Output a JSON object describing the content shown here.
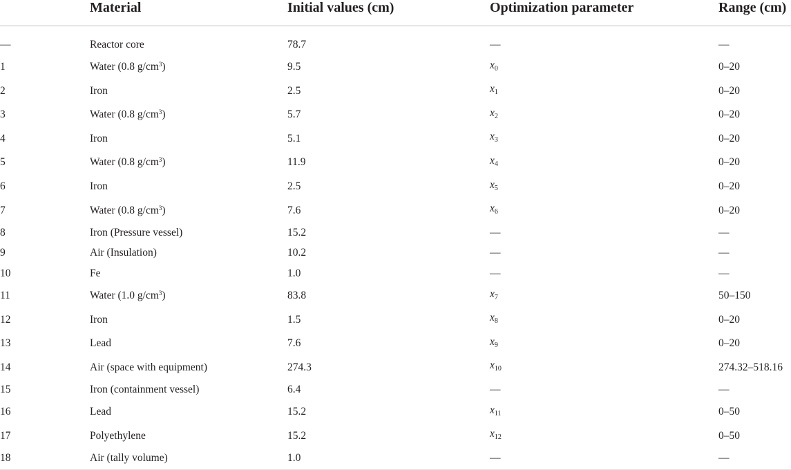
{
  "table": {
    "headers": [
      "",
      "Material",
      "Initial values (cm)",
      "Optimization parameter",
      "Range (cm)"
    ],
    "rows": [
      {
        "index": "—",
        "material": "Reactor core",
        "material_sup": "",
        "material_tail": "",
        "initial": "78.7",
        "param_base": "",
        "param_sub": "",
        "param_text": "—",
        "range": "—"
      },
      {
        "index": "1",
        "material": "Water (0.8 g/cm",
        "material_sup": "3",
        "material_tail": ")",
        "initial": "9.5",
        "param_base": "x",
        "param_sub": "0",
        "param_text": "",
        "range": "0–20"
      },
      {
        "index": "2",
        "material": "Iron",
        "material_sup": "",
        "material_tail": "",
        "initial": "2.5",
        "param_base": "x",
        "param_sub": "1",
        "param_text": "",
        "range": "0–20"
      },
      {
        "index": "3",
        "material": "Water (0.8 g/cm",
        "material_sup": "3",
        "material_tail": ")",
        "initial": "5.7",
        "param_base": "x",
        "param_sub": "2",
        "param_text": "",
        "range": "0–20"
      },
      {
        "index": "4",
        "material": "Iron",
        "material_sup": "",
        "material_tail": "",
        "initial": "5.1",
        "param_base": "x",
        "param_sub": "3",
        "param_text": "",
        "range": "0–20"
      },
      {
        "index": "5",
        "material": "Water (0.8 g/cm",
        "material_sup": "3",
        "material_tail": ")",
        "initial": "11.9",
        "param_base": "x",
        "param_sub": "4",
        "param_text": "",
        "range": "0–20"
      },
      {
        "index": "6",
        "material": "Iron",
        "material_sup": "",
        "material_tail": "",
        "initial": "2.5",
        "param_base": "x",
        "param_sub": "5",
        "param_text": "",
        "range": "0–20"
      },
      {
        "index": "7",
        "material": "Water (0.8 g/cm",
        "material_sup": "3",
        "material_tail": ")",
        "initial": "7.6",
        "param_base": "x",
        "param_sub": "6",
        "param_text": "",
        "range": "0–20"
      },
      {
        "index": "8",
        "material": "Iron (Pressure vessel)",
        "material_sup": "",
        "material_tail": "",
        "initial": "15.2",
        "param_base": "",
        "param_sub": "",
        "param_text": "—",
        "range": "—"
      },
      {
        "index": "9",
        "material": "Air (Insulation)",
        "material_sup": "",
        "material_tail": "",
        "initial": "10.2",
        "param_base": "",
        "param_sub": "",
        "param_text": "—",
        "range": "—"
      },
      {
        "index": "10",
        "material": "Fe",
        "material_sup": "",
        "material_tail": "",
        "initial": "1.0",
        "param_base": "",
        "param_sub": "",
        "param_text": "—",
        "range": "—"
      },
      {
        "index": "11",
        "material": "Water (1.0 g/cm",
        "material_sup": "3",
        "material_tail": ")",
        "initial": "83.8",
        "param_base": "x",
        "param_sub": "7",
        "param_text": "",
        "range": "50–150"
      },
      {
        "index": "12",
        "material": "Iron",
        "material_sup": "",
        "material_tail": "",
        "initial": "1.5",
        "param_base": "x",
        "param_sub": "8",
        "param_text": "",
        "range": "0–20"
      },
      {
        "index": "13",
        "material": "Lead",
        "material_sup": "",
        "material_tail": "",
        "initial": "7.6",
        "param_base": "x",
        "param_sub": "9",
        "param_text": "",
        "range": "0–20"
      },
      {
        "index": "14",
        "material": "Air (space with equipment)",
        "material_sup": "",
        "material_tail": "",
        "initial": "274.3",
        "param_base": "x",
        "param_sub": "10",
        "param_text": "",
        "range": "274.32–518.16"
      },
      {
        "index": "15",
        "material": "Iron (containment vessel)",
        "material_sup": "",
        "material_tail": "",
        "initial": "6.4",
        "param_base": "",
        "param_sub": "",
        "param_text": "—",
        "range": "—"
      },
      {
        "index": "16",
        "material": "Lead",
        "material_sup": "",
        "material_tail": "",
        "initial": "15.2",
        "param_base": "x",
        "param_sub": "11",
        "param_text": "",
        "range": "0–50"
      },
      {
        "index": "17",
        "material": "Polyethylene",
        "material_sup": "",
        "material_tail": "",
        "initial": "15.2",
        "param_base": "x",
        "param_sub": "12",
        "param_text": "",
        "range": "0–50"
      },
      {
        "index": "18",
        "material": "Air (tally volume)",
        "material_sup": "",
        "material_tail": "",
        "initial": "1.0",
        "param_base": "",
        "param_sub": "",
        "param_text": "—",
        "range": "—"
      }
    ]
  }
}
